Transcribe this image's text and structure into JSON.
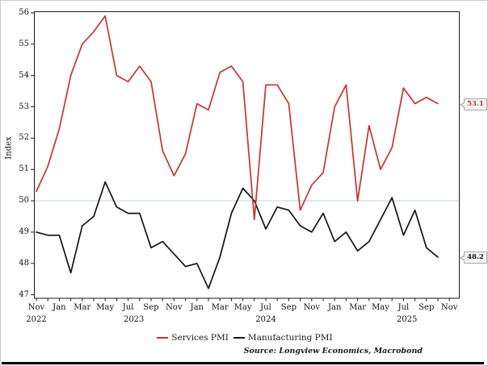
{
  "chart": {
    "y_axis_title": "Index",
    "y_ticks": [
      56,
      55,
      54,
      53,
      52,
      51,
      50,
      49,
      48,
      47
    ],
    "x_month_labels": [
      "Nov",
      "Jan",
      "Mar",
      "May",
      "Jul",
      "Sep",
      "Nov",
      "Jan",
      "Mar",
      "May",
      "Jul",
      "Sep",
      "Nov",
      "Jan",
      "Mar",
      "May",
      "Jul",
      "Sep",
      "Nov"
    ],
    "x_years": [
      {
        "label": "2022",
        "month_index": 0
      },
      {
        "label": "2023",
        "month_index": 8.5
      },
      {
        "label": "2024",
        "month_index": 20.0
      },
      {
        "label": "2025",
        "month_index": 32.3
      }
    ],
    "reference_line_value": 50,
    "axis_color": "#1a1a1a",
    "reference_line_color": "#cfe3ed",
    "legend": [
      {
        "label": "Services PMI",
        "color": "#c63430"
      },
      {
        "label": "Manufacturing PMI",
        "color": "#141414"
      }
    ],
    "end_labels": [
      {
        "text": "53.1",
        "color": "#c63430"
      },
      {
        "text": "48.2",
        "color": "#1a1a1a"
      }
    ],
    "source_note": "Source: Longview Economics, Macrobond"
  },
  "chart_data": {
    "type": "line",
    "title": "",
    "xlabel": "",
    "ylabel": "Index",
    "ylim": [
      46.9,
      56.05
    ],
    "grid": "reference line at 50 only",
    "legend_position": "bottom-center",
    "x": [
      "2022-11",
      "2022-12",
      "2023-01",
      "2023-02",
      "2023-03",
      "2023-04",
      "2023-05",
      "2023-06",
      "2023-07",
      "2023-08",
      "2023-09",
      "2023-10",
      "2023-11",
      "2023-12",
      "2024-01",
      "2024-02",
      "2024-03",
      "2024-04",
      "2024-05",
      "2024-06",
      "2024-07",
      "2024-08",
      "2024-09",
      "2024-10",
      "2024-11",
      "2024-12",
      "2025-01",
      "2025-02",
      "2025-03",
      "2025-04",
      "2025-05",
      "2025-06",
      "2025-07",
      "2025-08",
      "2025-09",
      "2025-10"
    ],
    "series": [
      {
        "name": "Services PMI",
        "color": "#c63430",
        "values": [
          50.3,
          51.1,
          52.3,
          54.0,
          55.0,
          55.4,
          55.9,
          54.0,
          53.8,
          54.3,
          53.8,
          51.6,
          50.8,
          51.5,
          53.1,
          52.9,
          54.1,
          54.3,
          53.8,
          49.4,
          53.7,
          53.7,
          53.1,
          49.7,
          50.5,
          50.9,
          53.0,
          53.7,
          50.0,
          52.4,
          51.0,
          51.7,
          53.6,
          53.1,
          53.3,
          53.1
        ]
      },
      {
        "name": "Manufacturing PMI",
        "color": "#141414",
        "values": [
          49.0,
          48.9,
          48.9,
          47.7,
          49.2,
          49.5,
          50.6,
          49.8,
          49.6,
          49.6,
          48.5,
          48.7,
          48.3,
          47.9,
          48.0,
          47.2,
          48.2,
          49.6,
          50.4,
          50.0,
          49.1,
          49.8,
          49.7,
          49.2,
          49.0,
          49.6,
          48.7,
          49.0,
          48.4,
          48.7,
          49.4,
          50.1,
          48.9,
          49.7,
          48.5,
          48.2
        ]
      }
    ],
    "reference_line": 50,
    "end_point_labels": {
      "Services PMI": 53.1,
      "Manufacturing PMI": 48.2
    }
  }
}
